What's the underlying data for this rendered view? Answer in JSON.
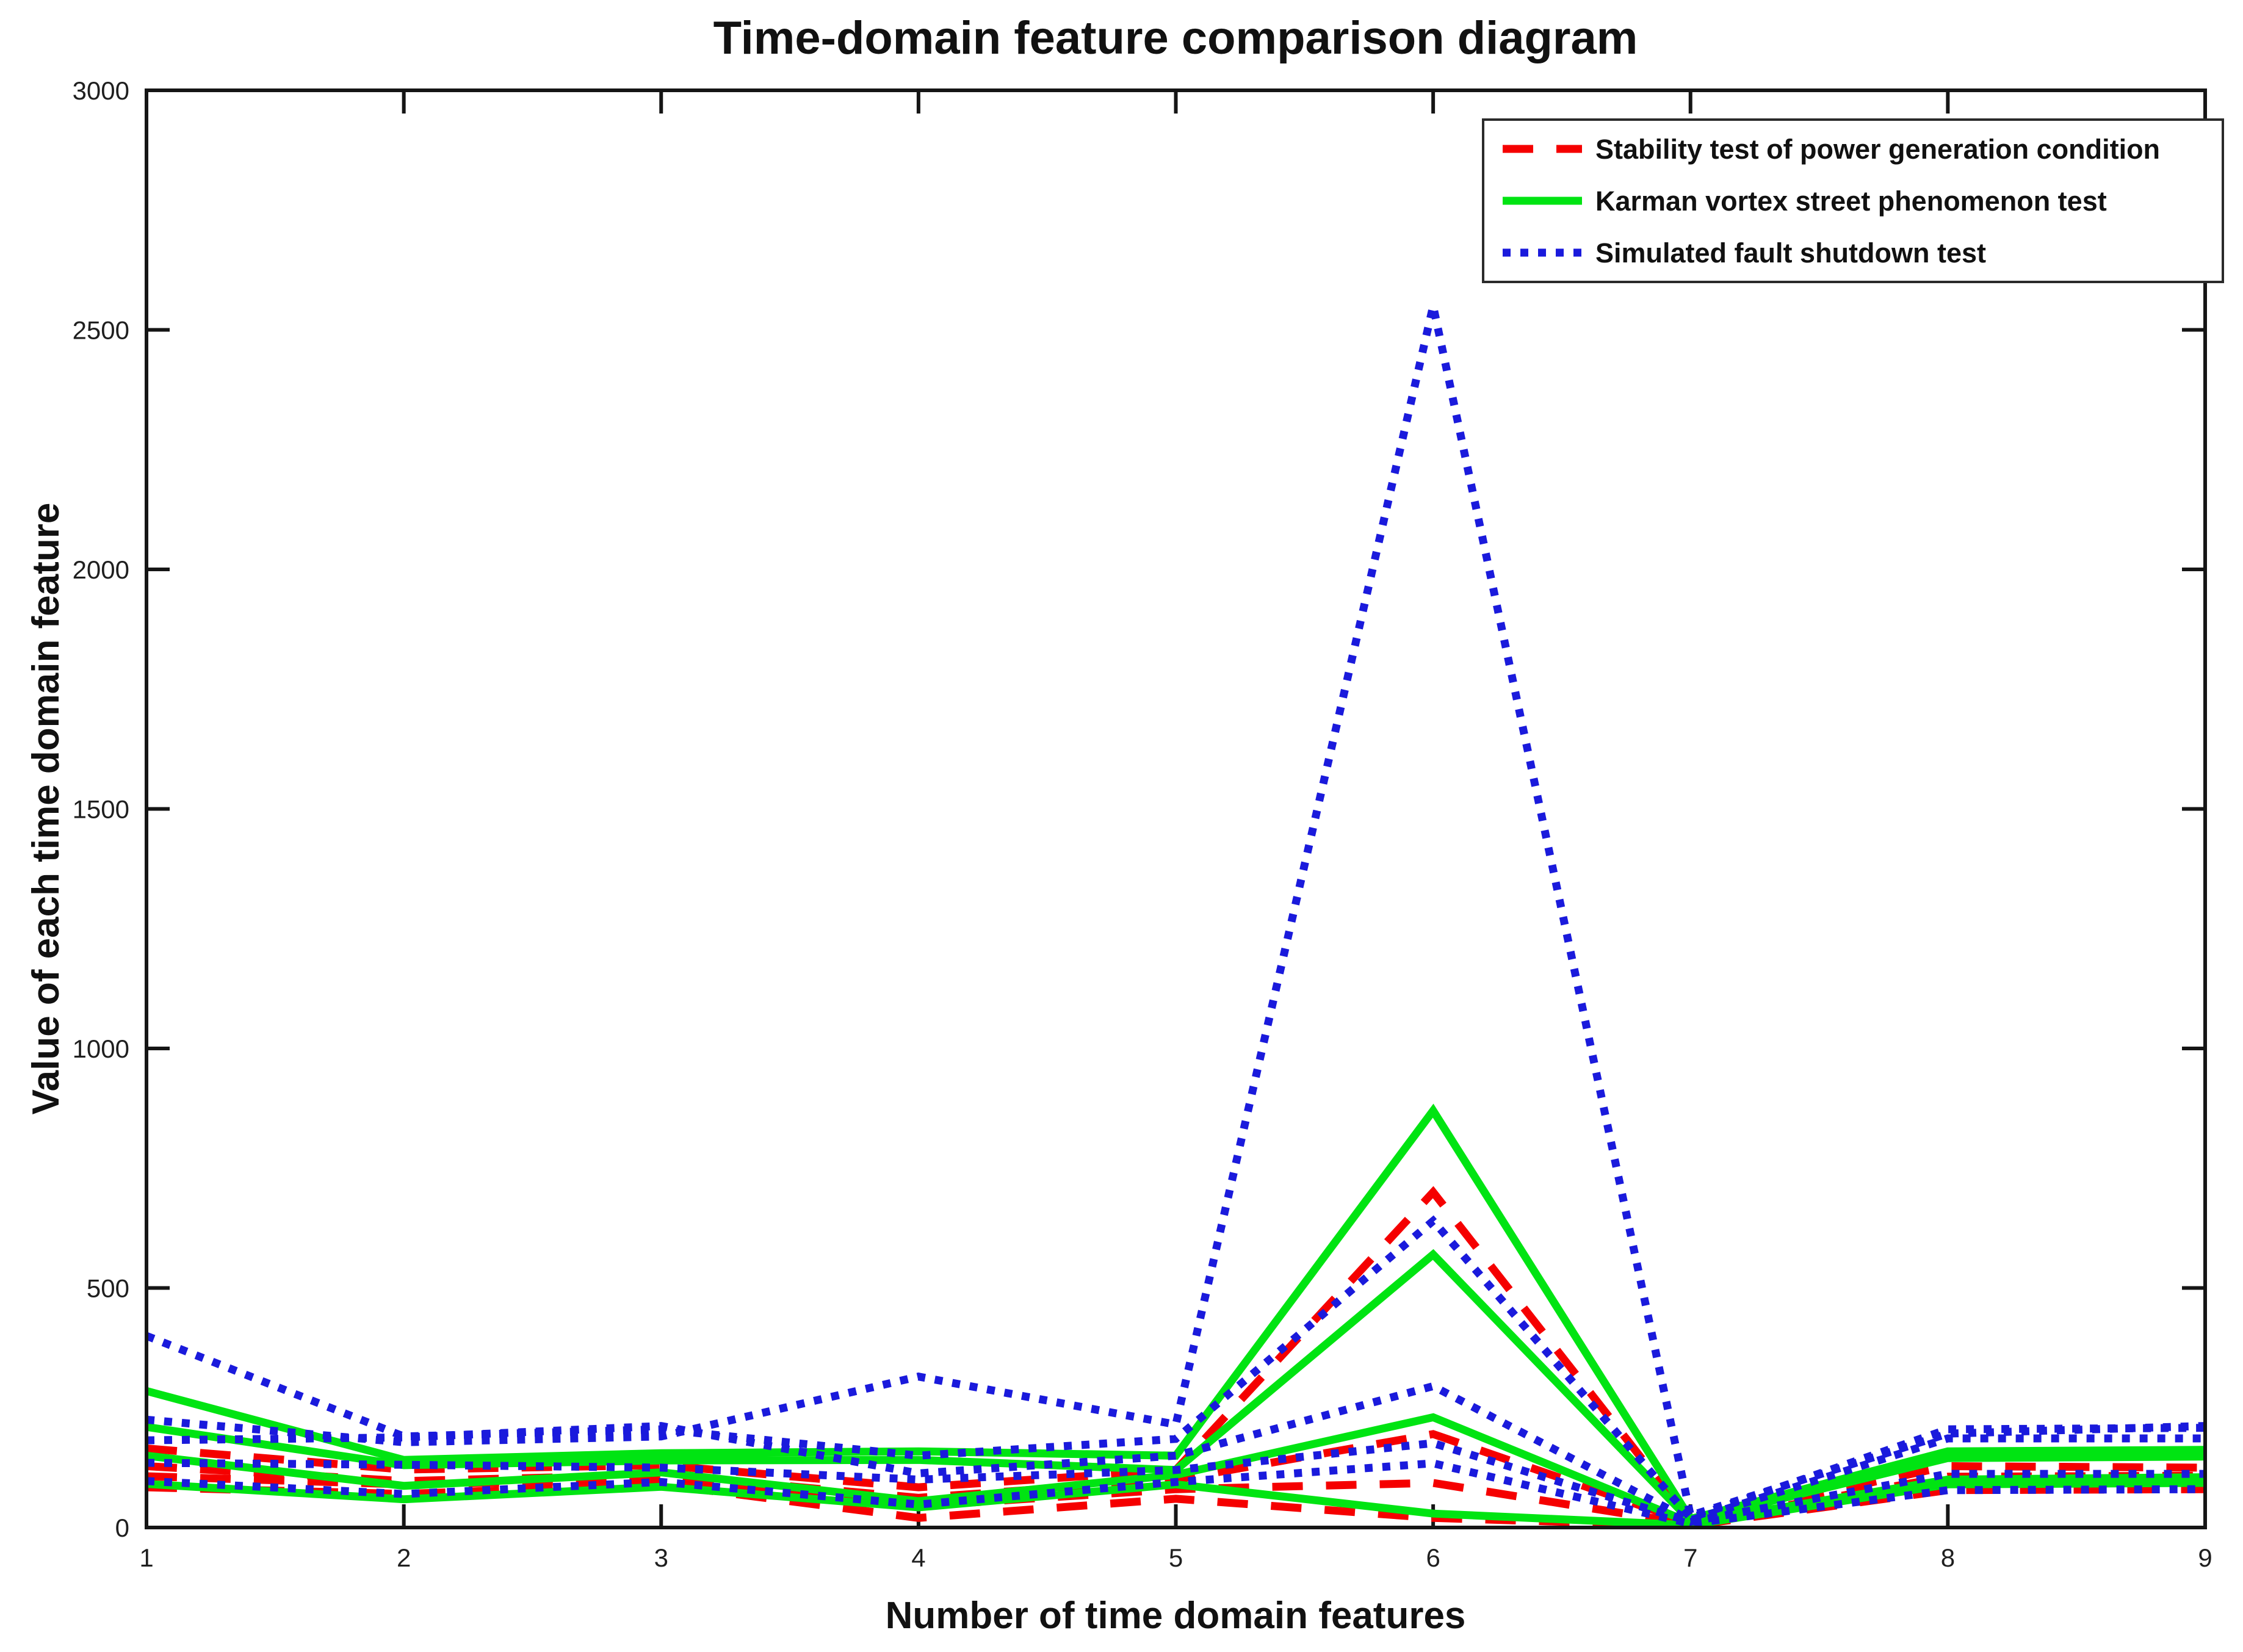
{
  "figure": {
    "title": "Time-domain feature comparison diagram",
    "background": "#ffffff"
  },
  "chart_data": {
    "type": "line",
    "title": "Time-domain feature comparison diagram",
    "xlabel": "Number of time domain features",
    "ylabel": "Value of each time domain feature",
    "xlim": [
      1,
      9
    ],
    "ylim": [
      0,
      3000
    ],
    "xticks": [
      "1",
      "2",
      "3",
      "4",
      "5",
      "6",
      "7",
      "8",
      "9"
    ],
    "yticks": [
      "0",
      "500",
      "1000",
      "1500",
      "2000",
      "2500",
      "3000"
    ],
    "ytick_values": [
      0,
      500,
      1000,
      1500,
      2000,
      2500,
      3000
    ],
    "xtick_values": [
      1,
      2,
      3,
      4,
      5,
      6,
      7,
      8,
      9
    ],
    "grid": false,
    "legend_position": "top-right",
    "x": [
      1,
      2,
      3,
      4,
      5,
      6,
      7,
      8,
      9
    ],
    "colors": {
      "red": "#f50000",
      "green": "#00e412",
      "blue": "#1a1adc",
      "axis": "#151515"
    },
    "legend": [
      {
        "label": "Stability test of power generation condition",
        "color": "#f50000",
        "style": "dashed"
      },
      {
        "label": "Karman vortex street phenomenon test",
        "color": "#00e412",
        "style": "solid"
      },
      {
        "label": "Simulated fault shutdown test",
        "color": "#1a1adc",
        "style": "dotted"
      }
    ],
    "series": [
      {
        "name": "Stability test of power generation condition",
        "sample": 1,
        "color": "#f50000",
        "style": "dashed",
        "values": [
          165,
          121,
          130,
          84,
          120,
          700,
          14,
          128,
          125
        ]
      },
      {
        "name": "Stability test of power generation condition",
        "sample": 2,
        "color": "#f50000",
        "style": "dashed",
        "values": [
          128,
          97,
          110,
          62,
          100,
          195,
          10,
          106,
          108
        ]
      },
      {
        "name": "Stability test of power generation condition",
        "sample": 3,
        "color": "#f50000",
        "style": "dashed",
        "values": [
          107,
          90,
          100,
          45,
          80,
          93,
          7,
          90,
          95
        ]
      },
      {
        "name": "Stability test of power generation condition",
        "sample": 4,
        "color": "#f50000",
        "style": "dashed",
        "values": [
          84,
          70,
          90,
          20,
          60,
          20,
          4,
          78,
          80
        ]
      },
      {
        "name": "Karman vortex street phenomenon test",
        "sample": 1,
        "color": "#00e412",
        "style": "solid",
        "values": [
          285,
          141,
          155,
          159,
          150,
          870,
          18,
          159,
          162
        ]
      },
      {
        "name": "Karman vortex street phenomenon test",
        "sample": 2,
        "color": "#00e412",
        "style": "solid",
        "values": [
          210,
          130,
          140,
          141,
          120,
          570,
          14,
          145,
          148
        ]
      },
      {
        "name": "Karman vortex street phenomenon test",
        "sample": 3,
        "color": "#00e412",
        "style": "solid",
        "values": [
          150,
          87,
          115,
          55,
          110,
          230,
          10,
          100,
          105
        ]
      },
      {
        "name": "Karman vortex street phenomenon test",
        "sample": 4,
        "color": "#00e412",
        "style": "solid",
        "values": [
          91,
          59,
          85,
          42,
          90,
          29,
          5,
          90,
          93
        ]
      },
      {
        "name": "Simulated fault shutdown test",
        "sample": 1,
        "color": "#1a1adc",
        "style": "dotted",
        "values": [
          400,
          190,
          205,
          150,
          185,
          640,
          20,
          205,
          208
        ]
      },
      {
        "name": "Simulated fault shutdown test",
        "sample": 2,
        "color": "#1a1adc",
        "style": "dotted",
        "values": [
          225,
          178,
          190,
          315,
          215,
          2550,
          25,
          196,
          212
        ]
      },
      {
        "name": "Simulated fault shutdown test",
        "sample": 3,
        "color": "#1a1adc",
        "style": "dotted",
        "values": [
          182,
          188,
          212,
          113,
          150,
          295,
          15,
          186,
          186
        ]
      },
      {
        "name": "Simulated fault shutdown test",
        "sample": 4,
        "color": "#1a1adc",
        "style": "dotted",
        "values": [
          135,
          131,
          125,
          100,
          120,
          176,
          12,
          112,
          112
        ]
      },
      {
        "name": "Simulated fault shutdown test",
        "sample": 5,
        "color": "#1a1adc",
        "style": "dotted",
        "values": [
          97,
          70,
          95,
          48,
          95,
          134,
          8,
          78,
          80
        ]
      }
    ]
  }
}
